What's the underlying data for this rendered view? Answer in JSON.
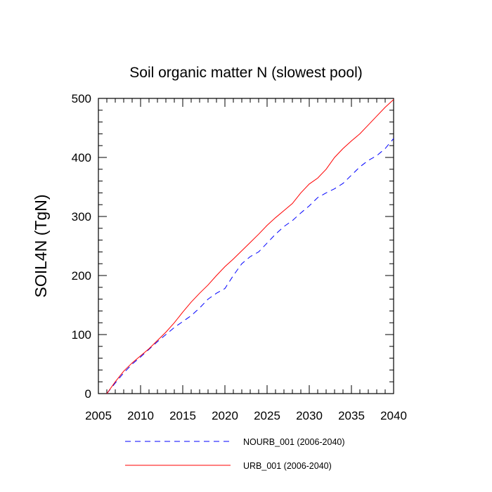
{
  "chart_data": {
    "type": "line",
    "title": "Soil organic matter N (slowest pool)",
    "xlabel": "",
    "ylabel": "SOIL4N  (TgN)",
    "xlim": [
      2005,
      2040
    ],
    "ylim": [
      0,
      500
    ],
    "x_ticks": [
      2005,
      2010,
      2015,
      2020,
      2025,
      2030,
      2035,
      2040
    ],
    "y_ticks": [
      0,
      100,
      200,
      300,
      400,
      500
    ],
    "grid": false,
    "legend_position": "bottom",
    "x": [
      2006,
      2007,
      2008,
      2009,
      2010,
      2011,
      2012,
      2013,
      2014,
      2015,
      2016,
      2017,
      2018,
      2019,
      2020,
      2021,
      2022,
      2023,
      2024,
      2025,
      2026,
      2027,
      2028,
      2029,
      2030,
      2031,
      2032,
      2033,
      2034,
      2035,
      2036,
      2037,
      2038,
      2039,
      2040
    ],
    "series": [
      {
        "name": "NOURB_001 (2006-2040)",
        "color": "#0000ff",
        "dash": "dashed",
        "values": [
          0,
          18,
          35,
          50,
          62,
          75,
          88,
          100,
          112,
          122,
          132,
          145,
          160,
          170,
          178,
          200,
          220,
          232,
          240,
          255,
          270,
          283,
          293,
          306,
          318,
          332,
          340,
          347,
          356,
          370,
          384,
          395,
          403,
          415,
          432
        ]
      },
      {
        "name": "URB_001 (2006-2040)",
        "color": "#ff0000",
        "dash": "solid",
        "values": [
          0,
          20,
          38,
          52,
          64,
          76,
          90,
          104,
          120,
          138,
          155,
          170,
          184,
          200,
          215,
          228,
          242,
          256,
          270,
          285,
          298,
          310,
          322,
          340,
          355,
          365,
          380,
          400,
          415,
          428,
          440,
          455,
          470,
          485,
          498
        ]
      }
    ]
  }
}
